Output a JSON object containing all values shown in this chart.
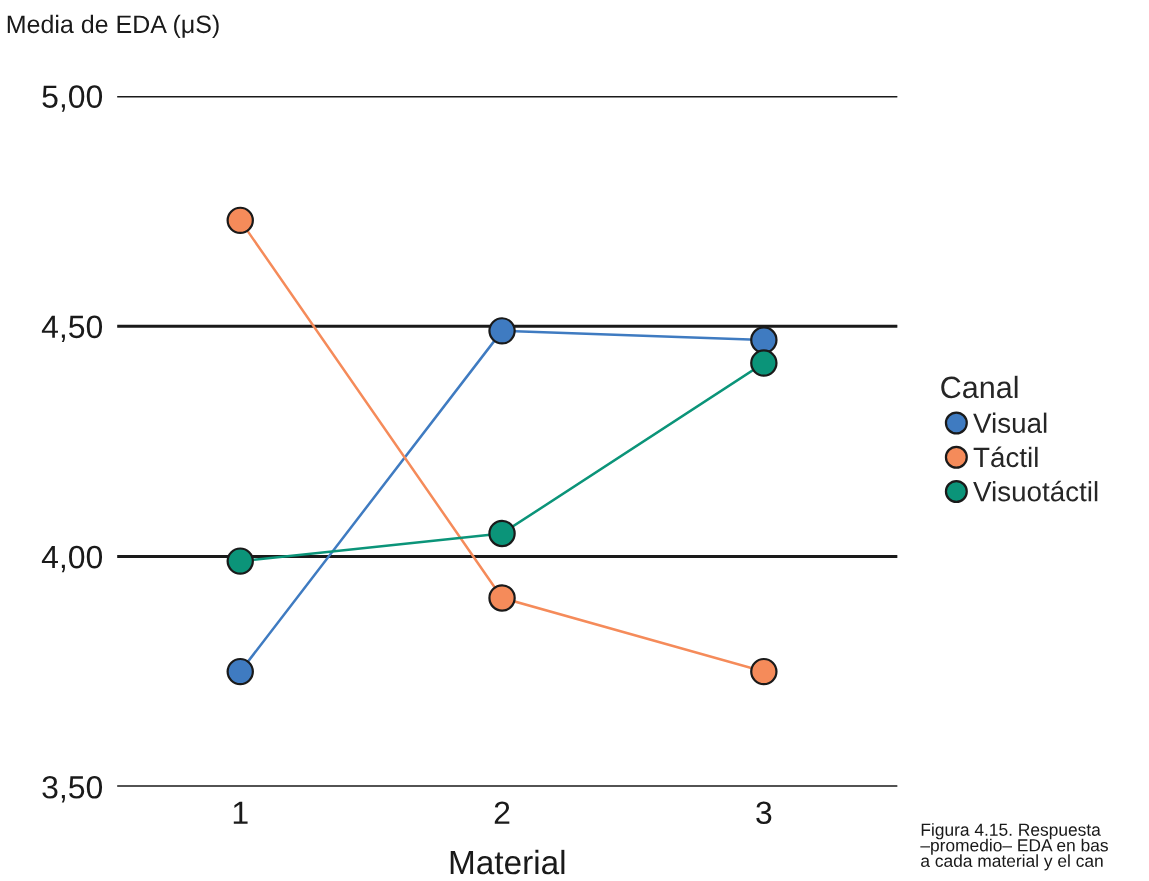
{
  "chart_data": {
    "type": "line",
    "ylabel": "Media de EDA (μS)",
    "xlabel": "Material",
    "legend_title": "Canal",
    "categories": [
      "1",
      "2",
      "3"
    ],
    "series": [
      {
        "name": "Visual",
        "color": "#3f7bc1",
        "values": [
          3.75,
          4.49,
          4.47
        ]
      },
      {
        "name": "Táctil",
        "color": "#f58b5a",
        "values": [
          4.73,
          3.91,
          3.75
        ]
      },
      {
        "name": "Visuotáctil",
        "color": "#0b9479",
        "values": [
          3.99,
          4.05,
          4.42
        ]
      }
    ],
    "ylim": [
      3.5,
      5.0
    ],
    "yticks": [
      {
        "value": 3.5,
        "label": "3,50"
      },
      {
        "value": 4.0,
        "label": "4,00"
      },
      {
        "value": 4.5,
        "label": "4,50"
      },
      {
        "value": 5.0,
        "label": "5,00"
      }
    ],
    "grid": "y",
    "legend": "right",
    "marker": "circle",
    "line_style": "solid",
    "annotations": [
      "Figura 4.15. Respuesta\n–promedio– EDA en bas\na cada material y el can"
    ]
  }
}
